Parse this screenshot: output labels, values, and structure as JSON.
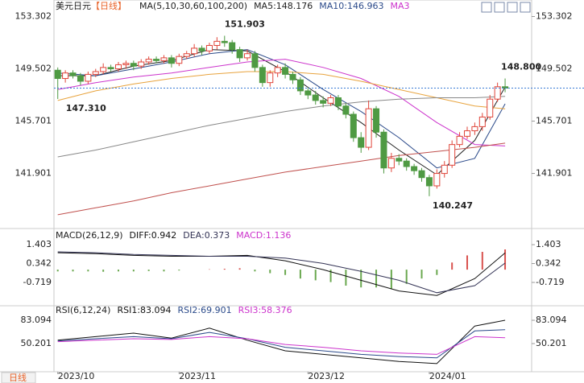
{
  "chart_data": [
    {
      "type": "candlestick",
      "title": "美元日元",
      "subtitle": "【日线】",
      "legend_title": "MA(5,10,30,60,100,200)",
      "up_color": "#e0453a",
      "down_color": "#4f9a43",
      "xlim": [
        -0.5,
        62.5
      ],
      "ylim": [
        137.9,
        153.8
      ],
      "yticks": [
        153.302,
        149.502,
        145.701,
        141.901
      ],
      "xticks": [
        {
          "value": 0,
          "label": "2023/10"
        },
        {
          "value": 16,
          "label": "2023/11"
        },
        {
          "value": 33,
          "label": "2023/12"
        },
        {
          "value": 49,
          "label": "2024/01"
        }
      ],
      "open": [
        149.4,
        148.8,
        149.2,
        149.0,
        148.6,
        149.1,
        149.3,
        149.6,
        149.5,
        149.8,
        149.9,
        149.7,
        150.0,
        150.2,
        150.1,
        150.3,
        149.9,
        150.4,
        150.6,
        151.0,
        150.8,
        151.2,
        151.5,
        151.4,
        150.9,
        150.3,
        150.6,
        149.6,
        148.5,
        149.2,
        149.6,
        149.1,
        148.7,
        147.9,
        147.6,
        147.2,
        147.0,
        147.4,
        146.8,
        146.2,
        144.5,
        143.8,
        146.6,
        144.9,
        142.3,
        143.0,
        142.8,
        142.4,
        142.1,
        141.6,
        141.0,
        141.9,
        142.5,
        144.0,
        144.6,
        145.0,
        145.3,
        146.0,
        147.3,
        148.2
      ],
      "high": [
        149.6,
        149.4,
        149.4,
        149.2,
        149.3,
        149.5,
        149.9,
        149.8,
        150.0,
        150.1,
        150.1,
        150.2,
        150.4,
        150.4,
        150.5,
        150.5,
        150.6,
        150.8,
        151.3,
        151.2,
        151.4,
        151.8,
        151.903,
        151.6,
        151.1,
        150.9,
        150.8,
        149.8,
        149.4,
        149.8,
        149.9,
        149.3,
        148.9,
        148.1,
        147.9,
        147.5,
        147.6,
        147.6,
        147.0,
        146.4,
        144.9,
        147.2,
        146.8,
        145.1,
        143.4,
        143.3,
        143.0,
        142.6,
        142.3,
        141.8,
        142.2,
        142.8,
        144.3,
        144.9,
        145.3,
        145.6,
        146.3,
        147.6,
        148.5,
        148.8
      ],
      "low": [
        147.31,
        148.5,
        148.8,
        148.3,
        148.4,
        148.9,
        149.1,
        149.3,
        149.3,
        149.5,
        149.4,
        149.5,
        149.8,
        149.9,
        149.9,
        149.6,
        149.7,
        150.2,
        150.4,
        150.5,
        150.6,
        150.9,
        151.1,
        150.6,
        150.0,
        150.1,
        149.3,
        148.2,
        148.2,
        148.9,
        148.8,
        148.4,
        147.6,
        147.3,
        146.9,
        146.7,
        146.8,
        146.5,
        145.9,
        144.2,
        143.4,
        143.6,
        144.5,
        141.9,
        142.0,
        142.5,
        142.1,
        141.8,
        141.3,
        140.247,
        140.8,
        141.6,
        142.3,
        143.8,
        144.4,
        144.7,
        145.0,
        145.8,
        147.1,
        147.8
      ],
      "close": [
        148.8,
        149.2,
        149.0,
        148.6,
        149.1,
        149.3,
        149.6,
        149.5,
        149.8,
        149.9,
        149.7,
        150.0,
        150.2,
        150.1,
        150.3,
        149.9,
        150.4,
        150.6,
        151.0,
        150.8,
        151.2,
        151.5,
        151.4,
        150.9,
        150.3,
        150.6,
        149.6,
        148.5,
        149.2,
        149.6,
        149.1,
        148.7,
        147.9,
        147.6,
        147.2,
        147.0,
        147.4,
        146.8,
        146.2,
        144.5,
        143.8,
        146.6,
        144.9,
        142.3,
        143.0,
        142.8,
        142.4,
        142.1,
        141.6,
        141.0,
        141.9,
        142.5,
        144.0,
        144.6,
        145.0,
        145.3,
        146.0,
        147.3,
        148.2,
        148.1
      ],
      "series": [
        {
          "name": "MA5:148.176",
          "color": "#222222",
          "x": [
            0,
            5,
            10,
            15,
            20,
            25,
            30,
            35,
            40,
            45,
            50,
            55,
            59
          ],
          "values": [
            149.0,
            149.0,
            149.7,
            150.1,
            150.9,
            150.8,
            149.3,
            147.4,
            145.6,
            143.6,
            141.8,
            144.3,
            148.18
          ]
        },
        {
          "name": "MA10:146.963",
          "color": "#2b4a8a",
          "x": [
            0,
            5,
            10,
            15,
            20,
            25,
            30,
            35,
            40,
            45,
            50,
            55,
            59
          ],
          "values": [
            149.2,
            149.0,
            149.5,
            150.0,
            150.6,
            150.9,
            149.8,
            148.0,
            146.4,
            144.5,
            142.3,
            143.0,
            146.96
          ]
        },
        {
          "name": "MA3",
          "color": "#cc33cc",
          "x": [
            0,
            5,
            10,
            15,
            20,
            25,
            30,
            35,
            40,
            45,
            50,
            55,
            59
          ],
          "values": [
            148.0,
            148.5,
            148.9,
            149.2,
            149.6,
            150.0,
            150.2,
            149.6,
            148.8,
            147.5,
            145.6,
            144.0,
            143.9
          ]
        },
        {
          "color": "#e8a33d",
          "x": [
            0,
            5,
            10,
            15,
            20,
            25,
            30,
            35,
            40,
            45,
            50,
            55,
            59
          ],
          "values": [
            147.2,
            147.9,
            148.4,
            148.8,
            149.1,
            149.3,
            149.3,
            149.1,
            148.6,
            148.0,
            147.4,
            146.8,
            146.6
          ]
        },
        {
          "color": "#888888",
          "x": [
            0,
            5,
            10,
            15,
            20,
            25,
            30,
            35,
            40,
            45,
            50,
            55,
            59
          ],
          "values": [
            143.1,
            143.6,
            144.2,
            144.8,
            145.4,
            145.9,
            146.4,
            146.8,
            147.1,
            147.3,
            147.4,
            147.4,
            147.5
          ]
        },
        {
          "color": "#c0504d",
          "x": [
            0,
            5,
            10,
            15,
            20,
            25,
            30,
            35,
            40,
            45,
            50,
            55,
            59
          ],
          "values": [
            138.9,
            139.4,
            139.9,
            140.5,
            141.0,
            141.5,
            142.0,
            142.4,
            142.8,
            143.2,
            143.5,
            143.8,
            144.1
          ]
        }
      ],
      "annotations": [
        "151.903",
        "147.310",
        "140.247",
        "148.800"
      ],
      "bottom_label": "日线"
    },
    {
      "type": "macd",
      "title": "MACD(26,12,9)",
      "ylim": [
        -1.94,
        2.04
      ],
      "yticks": [
        1.403,
        0.342,
        -0.719
      ],
      "series": [
        {
          "name": "DIFF:0.942",
          "color": "#111111",
          "x": [
            0,
            5,
            10,
            15,
            20,
            25,
            30,
            35,
            40,
            45,
            50,
            55,
            59
          ],
          "values": [
            0.95,
            0.9,
            0.8,
            0.75,
            0.75,
            0.8,
            0.5,
            0.0,
            -0.6,
            -1.2,
            -1.45,
            -0.5,
            0.942
          ]
        },
        {
          "name": "DEA:0.373",
          "color": "#333355",
          "x": [
            0,
            5,
            10,
            15,
            20,
            25,
            30,
            35,
            40,
            45,
            50,
            55,
            59
          ],
          "values": [
            1.0,
            0.95,
            0.85,
            0.8,
            0.75,
            0.75,
            0.65,
            0.35,
            -0.1,
            -0.6,
            -1.3,
            -0.9,
            0.373
          ]
        }
      ],
      "histogram": {
        "name": "MACD:1.136",
        "color": "#cc33cc",
        "up_color": "#d9534f",
        "down_color": "#6aa84f",
        "x": [
          0,
          2,
          4,
          6,
          8,
          10,
          12,
          14,
          16,
          18,
          20,
          22,
          24,
          26,
          28,
          30,
          32,
          34,
          36,
          38,
          40,
          42,
          44,
          46,
          48,
          50,
          52,
          54,
          56,
          59
        ],
        "values": [
          -0.1,
          -0.1,
          -0.1,
          -0.12,
          -0.1,
          -0.1,
          -0.08,
          -0.1,
          -0.05,
          0.0,
          0.02,
          0.05,
          0.08,
          -0.1,
          -0.2,
          -0.3,
          -0.5,
          -0.6,
          -0.7,
          -0.9,
          -1.0,
          -1.0,
          -1.1,
          -0.8,
          -0.5,
          -0.3,
          0.4,
          0.8,
          1.0,
          1.136
        ]
      }
    },
    {
      "type": "rsi",
      "title": "RSI(6,12,24)",
      "ylim": [
        10.5,
        97.9
      ],
      "yticks": [
        83.094,
        50.201
      ],
      "series": [
        {
          "name": "RSI1:83.094",
          "color": "#111111",
          "x": [
            0,
            5,
            10,
            15,
            20,
            25,
            30,
            35,
            40,
            45,
            50,
            55,
            59
          ],
          "values": [
            55,
            60,
            65,
            58,
            72,
            55,
            40,
            35,
            30,
            25,
            22,
            75,
            83.094
          ]
        },
        {
          "name": "RSI2:69.901",
          "color": "#2b4a8a",
          "x": [
            0,
            5,
            10,
            15,
            20,
            25,
            30,
            35,
            40,
            45,
            50,
            55,
            59
          ],
          "values": [
            54,
            57,
            60,
            57,
            66,
            57,
            45,
            40,
            35,
            32,
            30,
            68,
            69.901
          ]
        },
        {
          "name": "RSI3:58.376",
          "color": "#cc33cc",
          "x": [
            0,
            5,
            10,
            15,
            20,
            25,
            30,
            35,
            40,
            45,
            50,
            55,
            59
          ],
          "values": [
            53,
            55,
            57,
            56,
            60,
            57,
            49,
            45,
            40,
            37,
            35,
            60,
            58.376
          ]
        }
      ]
    }
  ]
}
